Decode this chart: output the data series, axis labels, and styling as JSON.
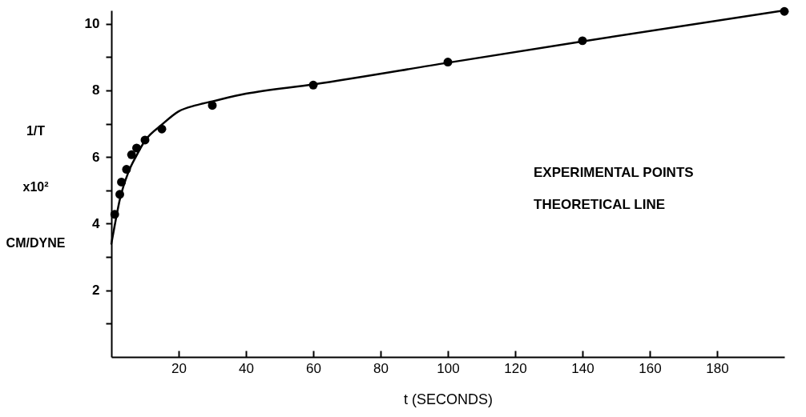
{
  "chart_data": {
    "type": "scatter",
    "xlabel": "t (SECONDS)",
    "ylabel": "1/T x10² CM/DYNE",
    "xlim": [
      0,
      200
    ],
    "xticks": [
      20,
      40,
      60,
      80,
      100,
      120,
      140,
      160,
      180
    ],
    "ylim": [
      0,
      10.4
    ],
    "yticks": [
      {
        "value": 1,
        "label": null
      },
      2,
      {
        "value": 3,
        "label": null
      },
      4,
      {
        "value": 5,
        "label": null
      },
      6,
      {
        "value": 7,
        "label": null
      },
      8,
      {
        "value": 9,
        "label": null
      },
      10
    ],
    "series": [
      {
        "color": "#000000",
        "marker": "circle",
        "x": [
          1,
          2.5,
          3,
          4.5,
          6,
          7.5,
          10,
          15,
          30,
          60,
          100,
          140,
          200
        ],
        "values": [
          4.28,
          4.88,
          5.25,
          5.63,
          6.07,
          6.27,
          6.51,
          6.84,
          7.55,
          8.16,
          8.85,
          9.49,
          10.37
        ]
      },
      {
        "type": "line",
        "color": "#000000",
        "line_style": "solid",
        "x": [
          0,
          1,
          2.5,
          5,
          7.5,
          10,
          15,
          20,
          25,
          30,
          40,
          60,
          100,
          140,
          200
        ],
        "values": [
          3.4,
          3.95,
          4.72,
          5.53,
          6.05,
          6.49,
          6.97,
          7.37,
          7.55,
          7.67,
          7.9,
          8.18,
          8.83,
          9.47,
          10.4
        ]
      }
    ],
    "annotations": [
      "EXPERIMENTAL  POINTS",
      "THEORETICAL   LINE"
    ],
    "grid": false
  }
}
